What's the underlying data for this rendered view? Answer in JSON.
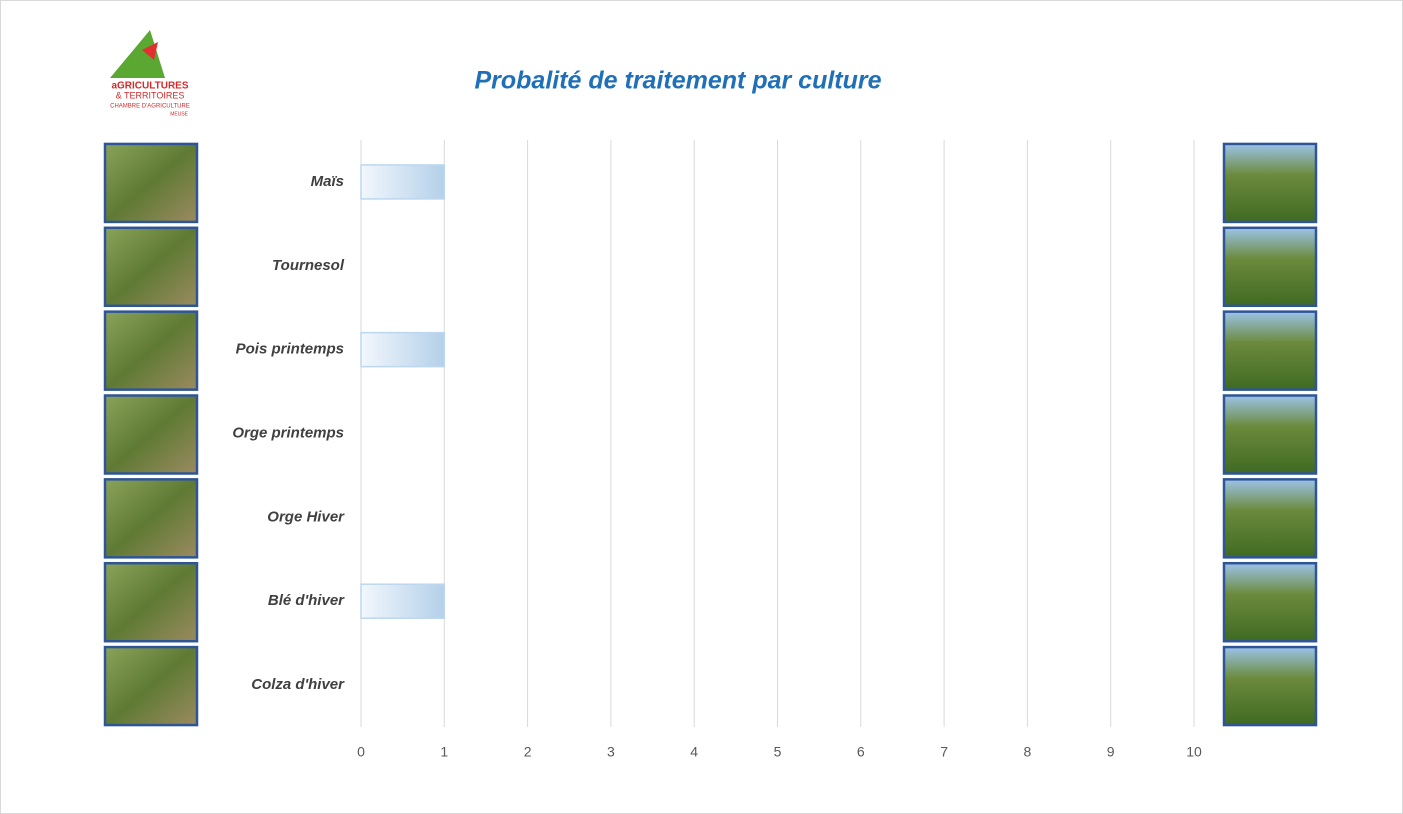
{
  "logo": {
    "lines": [
      "aGRICULTURES",
      "& TERRITOIRES",
      "CHAMBRE D'AGRICULTURE",
      "MEUSE"
    ]
  },
  "chart_data": {
    "type": "bar",
    "orientation": "horizontal",
    "title": "Probalité de traitement par culture",
    "categories": [
      "Maïs",
      "Tournesol",
      "Pois printemps",
      "Orge printemps",
      "Orge Hiver",
      "Blé d'hiver",
      "Colza d'hiver"
    ],
    "values": [
      1,
      0,
      1,
      0,
      0,
      1,
      0
    ],
    "color": "#bdd7ee",
    "xlim": [
      0,
      10
    ],
    "xticks": [
      0,
      1,
      2,
      3,
      4,
      5,
      6,
      7,
      8,
      9,
      10
    ],
    "grid": true
  }
}
